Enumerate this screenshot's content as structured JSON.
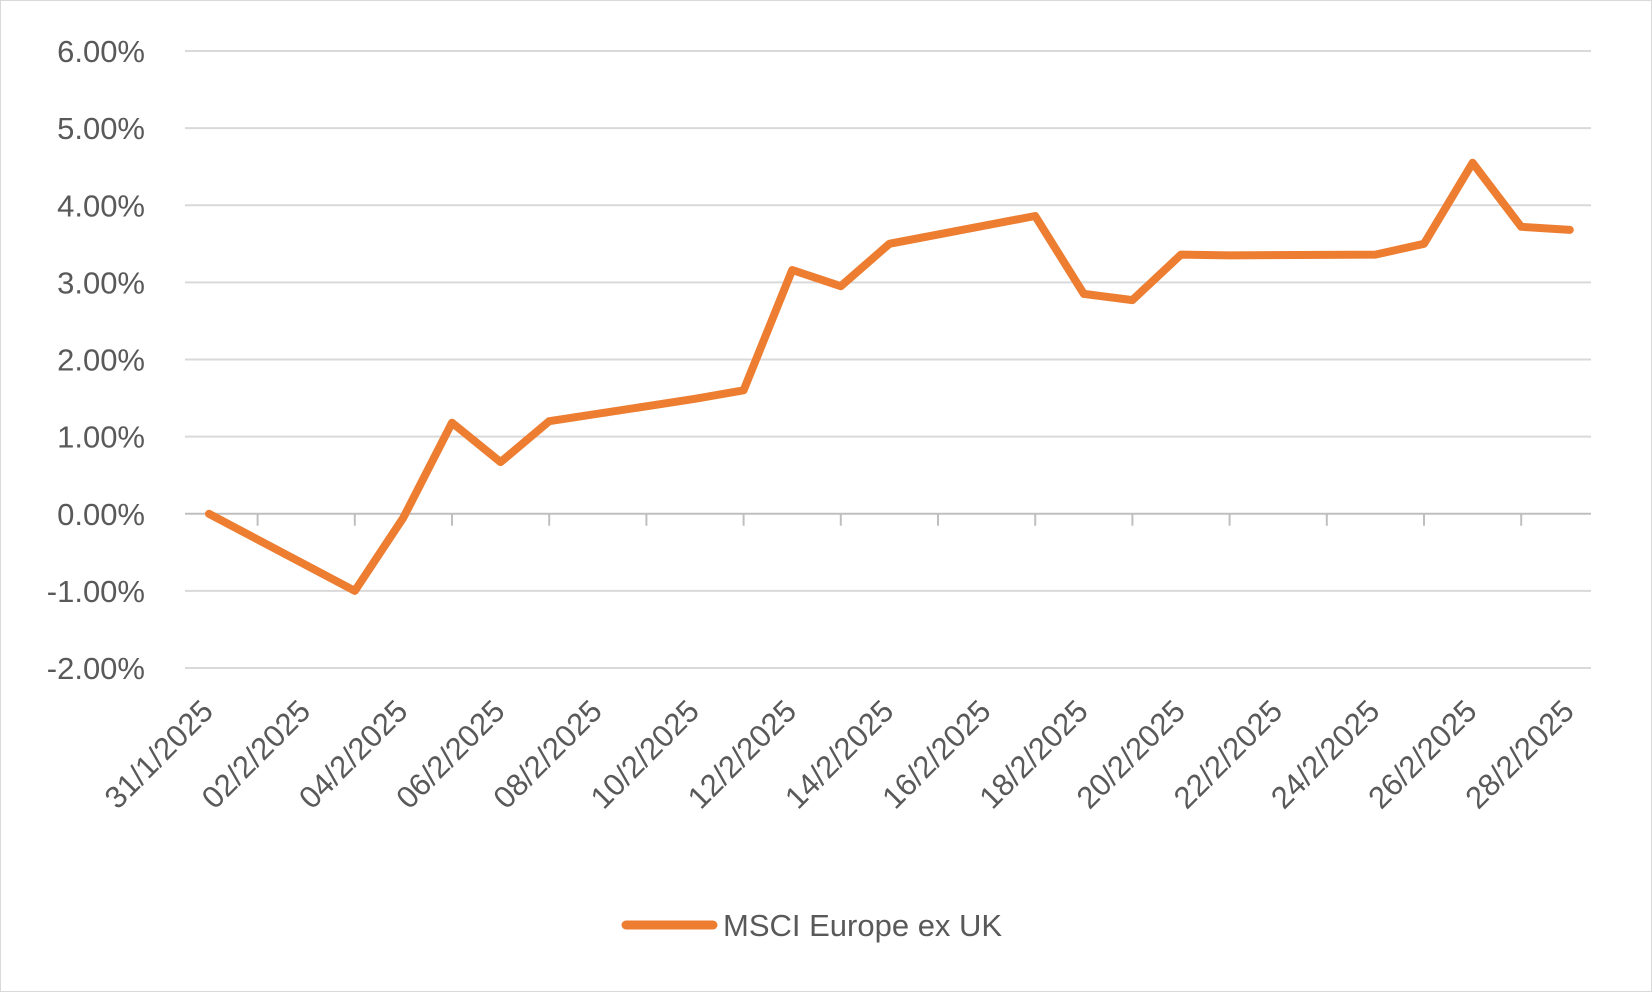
{
  "chart_data": {
    "type": "line",
    "title": "",
    "xlabel": "",
    "ylabel": "",
    "ylim": [
      -2,
      6
    ],
    "y_ticks": [
      -2,
      -1,
      0,
      1,
      2,
      3,
      4,
      5,
      6
    ],
    "y_tick_labels": [
      "-2.00%",
      "-1.00%",
      "0.00%",
      "1.00%",
      "2.00%",
      "3.00%",
      "4.00%",
      "5.00%",
      "6.00%"
    ],
    "x_tick_labels": [
      "31/1/2025",
      "02/2/2025",
      "04/2/2025",
      "06/2/2025",
      "08/2/2025",
      "10/2/2025",
      "12/2/2025",
      "14/2/2025",
      "16/2/2025",
      "18/2/2025",
      "20/2/2025",
      "22/2/2025",
      "24/2/2025",
      "26/2/2025",
      "28/2/2025"
    ],
    "grid": "horizontal",
    "legend_position": "bottom",
    "series": [
      {
        "name": "MSCI Europe ex UK",
        "color": "#ED7D31",
        "x": [
          "31/1/2025",
          "03/2/2025",
          "04/2/2025",
          "05/2/2025",
          "06/2/2025",
          "07/2/2025",
          "10/2/2025",
          "11/2/2025",
          "12/2/2025",
          "13/2/2025",
          "14/2/2025",
          "17/2/2025",
          "18/2/2025",
          "19/2/2025",
          "20/2/2025",
          "21/2/2025",
          "24/2/2025",
          "25/2/2025",
          "26/2/2025",
          "27/2/2025",
          "28/2/2025"
        ],
        "values": [
          0.0,
          -1.0,
          -0.05,
          1.18,
          0.67,
          1.2,
          1.49,
          1.6,
          3.16,
          2.95,
          3.5,
          3.86,
          2.85,
          2.77,
          3.36,
          3.35,
          3.36,
          3.5,
          4.55,
          3.72,
          3.68
        ]
      }
    ]
  }
}
